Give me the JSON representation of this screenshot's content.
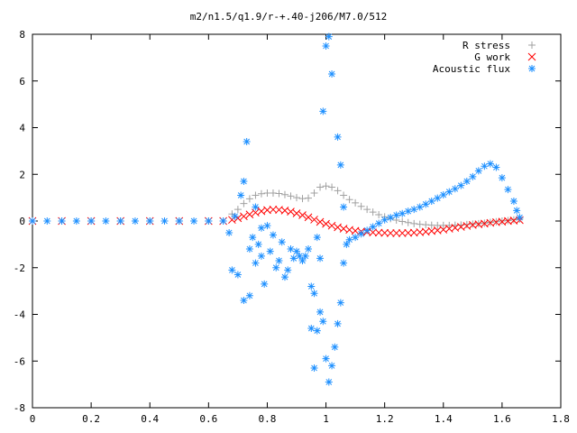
{
  "chart_data": {
    "type": "scatter",
    "title": "m2/n1.5/q1.9/r-+.40-j206/M7.0/512",
    "xlabel": "",
    "ylabel": "",
    "xlim": [
      0,
      1.8
    ],
    "ylim": [
      -8,
      8
    ],
    "x_ticks": [
      "0",
      "0.2",
      "0.4",
      "0.6",
      "0.8",
      "1",
      "1.2",
      "1.4",
      "1.6",
      "1.8"
    ],
    "y_ticks": [
      "8",
      "6",
      "4",
      "2",
      "0",
      "-2",
      "-4",
      "-6",
      "-8"
    ],
    "grid": false,
    "legend_position": "top-right",
    "series": [
      {
        "name": "R stress",
        "marker": "plus",
        "color": "#a0a0a0",
        "points": [
          [
            0.0,
            0.0
          ],
          [
            0.1,
            0.0
          ],
          [
            0.2,
            0.0
          ],
          [
            0.3,
            0.0
          ],
          [
            0.4,
            0.0
          ],
          [
            0.5,
            0.0
          ],
          [
            0.6,
            0.0
          ],
          [
            0.65,
            0.0
          ],
          [
            0.68,
            0.3
          ],
          [
            0.7,
            0.5
          ],
          [
            0.72,
            0.75
          ],
          [
            0.74,
            0.95
          ],
          [
            0.76,
            1.1
          ],
          [
            0.78,
            1.17
          ],
          [
            0.8,
            1.2
          ],
          [
            0.82,
            1.2
          ],
          [
            0.84,
            1.18
          ],
          [
            0.86,
            1.13
          ],
          [
            0.88,
            1.07
          ],
          [
            0.9,
            1.0
          ],
          [
            0.92,
            0.96
          ],
          [
            0.94,
            0.98
          ],
          [
            0.96,
            1.2
          ],
          [
            0.98,
            1.45
          ],
          [
            1.0,
            1.5
          ],
          [
            1.02,
            1.45
          ],
          [
            1.04,
            1.3
          ],
          [
            1.06,
            1.1
          ],
          [
            1.08,
            0.92
          ],
          [
            1.1,
            0.78
          ],
          [
            1.12,
            0.63
          ],
          [
            1.14,
            0.5
          ],
          [
            1.16,
            0.38
          ],
          [
            1.18,
            0.27
          ],
          [
            1.2,
            0.18
          ],
          [
            1.22,
            0.1
          ],
          [
            1.24,
            0.04
          ],
          [
            1.26,
            -0.02
          ],
          [
            1.28,
            -0.07
          ],
          [
            1.3,
            -0.11
          ],
          [
            1.32,
            -0.14
          ],
          [
            1.34,
            -0.16
          ],
          [
            1.36,
            -0.18
          ],
          [
            1.38,
            -0.19
          ],
          [
            1.4,
            -0.19
          ],
          [
            1.42,
            -0.19
          ],
          [
            1.44,
            -0.18
          ],
          [
            1.46,
            -0.17
          ],
          [
            1.48,
            -0.15
          ],
          [
            1.5,
            -0.13
          ],
          [
            1.52,
            -0.11
          ],
          [
            1.54,
            -0.09
          ],
          [
            1.56,
            -0.06
          ],
          [
            1.58,
            -0.03
          ],
          [
            1.6,
            0.0
          ],
          [
            1.62,
            0.02
          ],
          [
            1.64,
            0.05
          ],
          [
            1.66,
            0.08
          ]
        ]
      },
      {
        "name": "G work",
        "marker": "cross",
        "color": "#ff0000",
        "points": [
          [
            0.0,
            0.0
          ],
          [
            0.1,
            0.0
          ],
          [
            0.2,
            0.0
          ],
          [
            0.3,
            0.0
          ],
          [
            0.4,
            0.0
          ],
          [
            0.5,
            0.0
          ],
          [
            0.6,
            0.0
          ],
          [
            0.65,
            0.0
          ],
          [
            0.68,
            0.05
          ],
          [
            0.7,
            0.12
          ],
          [
            0.72,
            0.2
          ],
          [
            0.74,
            0.28
          ],
          [
            0.76,
            0.36
          ],
          [
            0.78,
            0.42
          ],
          [
            0.8,
            0.47
          ],
          [
            0.82,
            0.49
          ],
          [
            0.84,
            0.48
          ],
          [
            0.86,
            0.45
          ],
          [
            0.88,
            0.4
          ],
          [
            0.9,
            0.33
          ],
          [
            0.92,
            0.25
          ],
          [
            0.94,
            0.16
          ],
          [
            0.96,
            0.06
          ],
          [
            0.98,
            -0.04
          ],
          [
            1.0,
            -0.12
          ],
          [
            1.02,
            -0.2
          ],
          [
            1.04,
            -0.27
          ],
          [
            1.06,
            -0.33
          ],
          [
            1.08,
            -0.38
          ],
          [
            1.1,
            -0.42
          ],
          [
            1.12,
            -0.45
          ],
          [
            1.14,
            -0.47
          ],
          [
            1.16,
            -0.49
          ],
          [
            1.18,
            -0.5
          ],
          [
            1.2,
            -0.51
          ],
          [
            1.22,
            -0.52
          ],
          [
            1.24,
            -0.52
          ],
          [
            1.26,
            -0.52
          ],
          [
            1.28,
            -0.51
          ],
          [
            1.3,
            -0.5
          ],
          [
            1.32,
            -0.48
          ],
          [
            1.34,
            -0.46
          ],
          [
            1.36,
            -0.43
          ],
          [
            1.38,
            -0.4
          ],
          [
            1.4,
            -0.37
          ],
          [
            1.42,
            -0.33
          ],
          [
            1.44,
            -0.29
          ],
          [
            1.46,
            -0.25
          ],
          [
            1.48,
            -0.21
          ],
          [
            1.5,
            -0.17
          ],
          [
            1.52,
            -0.14
          ],
          [
            1.54,
            -0.11
          ],
          [
            1.56,
            -0.08
          ],
          [
            1.58,
            -0.05
          ],
          [
            1.6,
            -0.03
          ],
          [
            1.62,
            0.0
          ],
          [
            1.64,
            0.02
          ],
          [
            1.66,
            0.04
          ]
        ]
      },
      {
        "name": "Acoustic flux",
        "marker": "star",
        "color": "#1e90ff",
        "points": [
          [
            0.0,
            0.0
          ],
          [
            0.05,
            0.0
          ],
          [
            0.1,
            0.0
          ],
          [
            0.15,
            0.0
          ],
          [
            0.2,
            0.0
          ],
          [
            0.25,
            0.0
          ],
          [
            0.3,
            0.0
          ],
          [
            0.35,
            0.0
          ],
          [
            0.4,
            0.0
          ],
          [
            0.45,
            0.0
          ],
          [
            0.5,
            0.0
          ],
          [
            0.55,
            0.0
          ],
          [
            0.6,
            0.0
          ],
          [
            0.65,
            0.0
          ],
          [
            0.67,
            -0.5
          ],
          [
            0.68,
            -2.1
          ],
          [
            0.69,
            0.2
          ],
          [
            0.7,
            -2.3
          ],
          [
            0.71,
            1.1
          ],
          [
            0.72,
            -3.4
          ],
          [
            0.72,
            1.7
          ],
          [
            0.73,
            3.4
          ],
          [
            0.74,
            -1.2
          ],
          [
            0.74,
            -3.2
          ],
          [
            0.75,
            -0.7
          ],
          [
            0.76,
            -1.8
          ],
          [
            0.76,
            0.6
          ],
          [
            0.77,
            -1.0
          ],
          [
            0.78,
            -0.3
          ],
          [
            0.78,
            -1.5
          ],
          [
            0.79,
            -2.7
          ],
          [
            0.8,
            -0.2
          ],
          [
            0.81,
            -1.3
          ],
          [
            0.82,
            -0.6
          ],
          [
            0.83,
            -2.0
          ],
          [
            0.84,
            -1.7
          ],
          [
            0.85,
            -0.9
          ],
          [
            0.86,
            -2.4
          ],
          [
            0.87,
            -2.1
          ],
          [
            0.88,
            -1.2
          ],
          [
            0.89,
            -1.6
          ],
          [
            0.9,
            -1.3
          ],
          [
            0.91,
            -1.5
          ],
          [
            0.92,
            -1.7
          ],
          [
            0.93,
            -1.5
          ],
          [
            0.94,
            -1.2
          ],
          [
            0.95,
            -2.8
          ],
          [
            0.95,
            -4.6
          ],
          [
            0.96,
            -3.1
          ],
          [
            0.96,
            -6.3
          ],
          [
            0.97,
            -4.7
          ],
          [
            0.97,
            -0.7
          ],
          [
            0.98,
            -1.6
          ],
          [
            0.98,
            -3.9
          ],
          [
            0.99,
            -4.3
          ],
          [
            0.99,
            4.7
          ],
          [
            1.0,
            7.5
          ],
          [
            1.0,
            -5.9
          ],
          [
            1.01,
            7.9
          ],
          [
            1.01,
            -6.9
          ],
          [
            1.02,
            -6.2
          ],
          [
            1.02,
            6.3
          ],
          [
            1.03,
            -5.4
          ],
          [
            1.04,
            3.6
          ],
          [
            1.04,
            -4.4
          ],
          [
            1.05,
            2.4
          ],
          [
            1.05,
            -3.5
          ],
          [
            1.06,
            0.6
          ],
          [
            1.06,
            -1.8
          ],
          [
            1.07,
            -1.0
          ],
          [
            1.08,
            -0.8
          ],
          [
            1.1,
            -0.7
          ],
          [
            1.12,
            -0.55
          ],
          [
            1.14,
            -0.4
          ],
          [
            1.16,
            -0.25
          ],
          [
            1.18,
            -0.1
          ],
          [
            1.2,
            0.05
          ],
          [
            1.22,
            0.15
          ],
          [
            1.24,
            0.25
          ],
          [
            1.26,
            0.32
          ],
          [
            1.28,
            0.42
          ],
          [
            1.3,
            0.5
          ],
          [
            1.32,
            0.6
          ],
          [
            1.34,
            0.72
          ],
          [
            1.36,
            0.85
          ],
          [
            1.38,
            0.98
          ],
          [
            1.4,
            1.12
          ],
          [
            1.42,
            1.25
          ],
          [
            1.44,
            1.38
          ],
          [
            1.46,
            1.52
          ],
          [
            1.48,
            1.7
          ],
          [
            1.5,
            1.9
          ],
          [
            1.52,
            2.15
          ],
          [
            1.54,
            2.35
          ],
          [
            1.56,
            2.45
          ],
          [
            1.58,
            2.3
          ],
          [
            1.6,
            1.85
          ],
          [
            1.62,
            1.35
          ],
          [
            1.64,
            0.85
          ],
          [
            1.65,
            0.45
          ],
          [
            1.66,
            0.15
          ]
        ]
      }
    ]
  }
}
